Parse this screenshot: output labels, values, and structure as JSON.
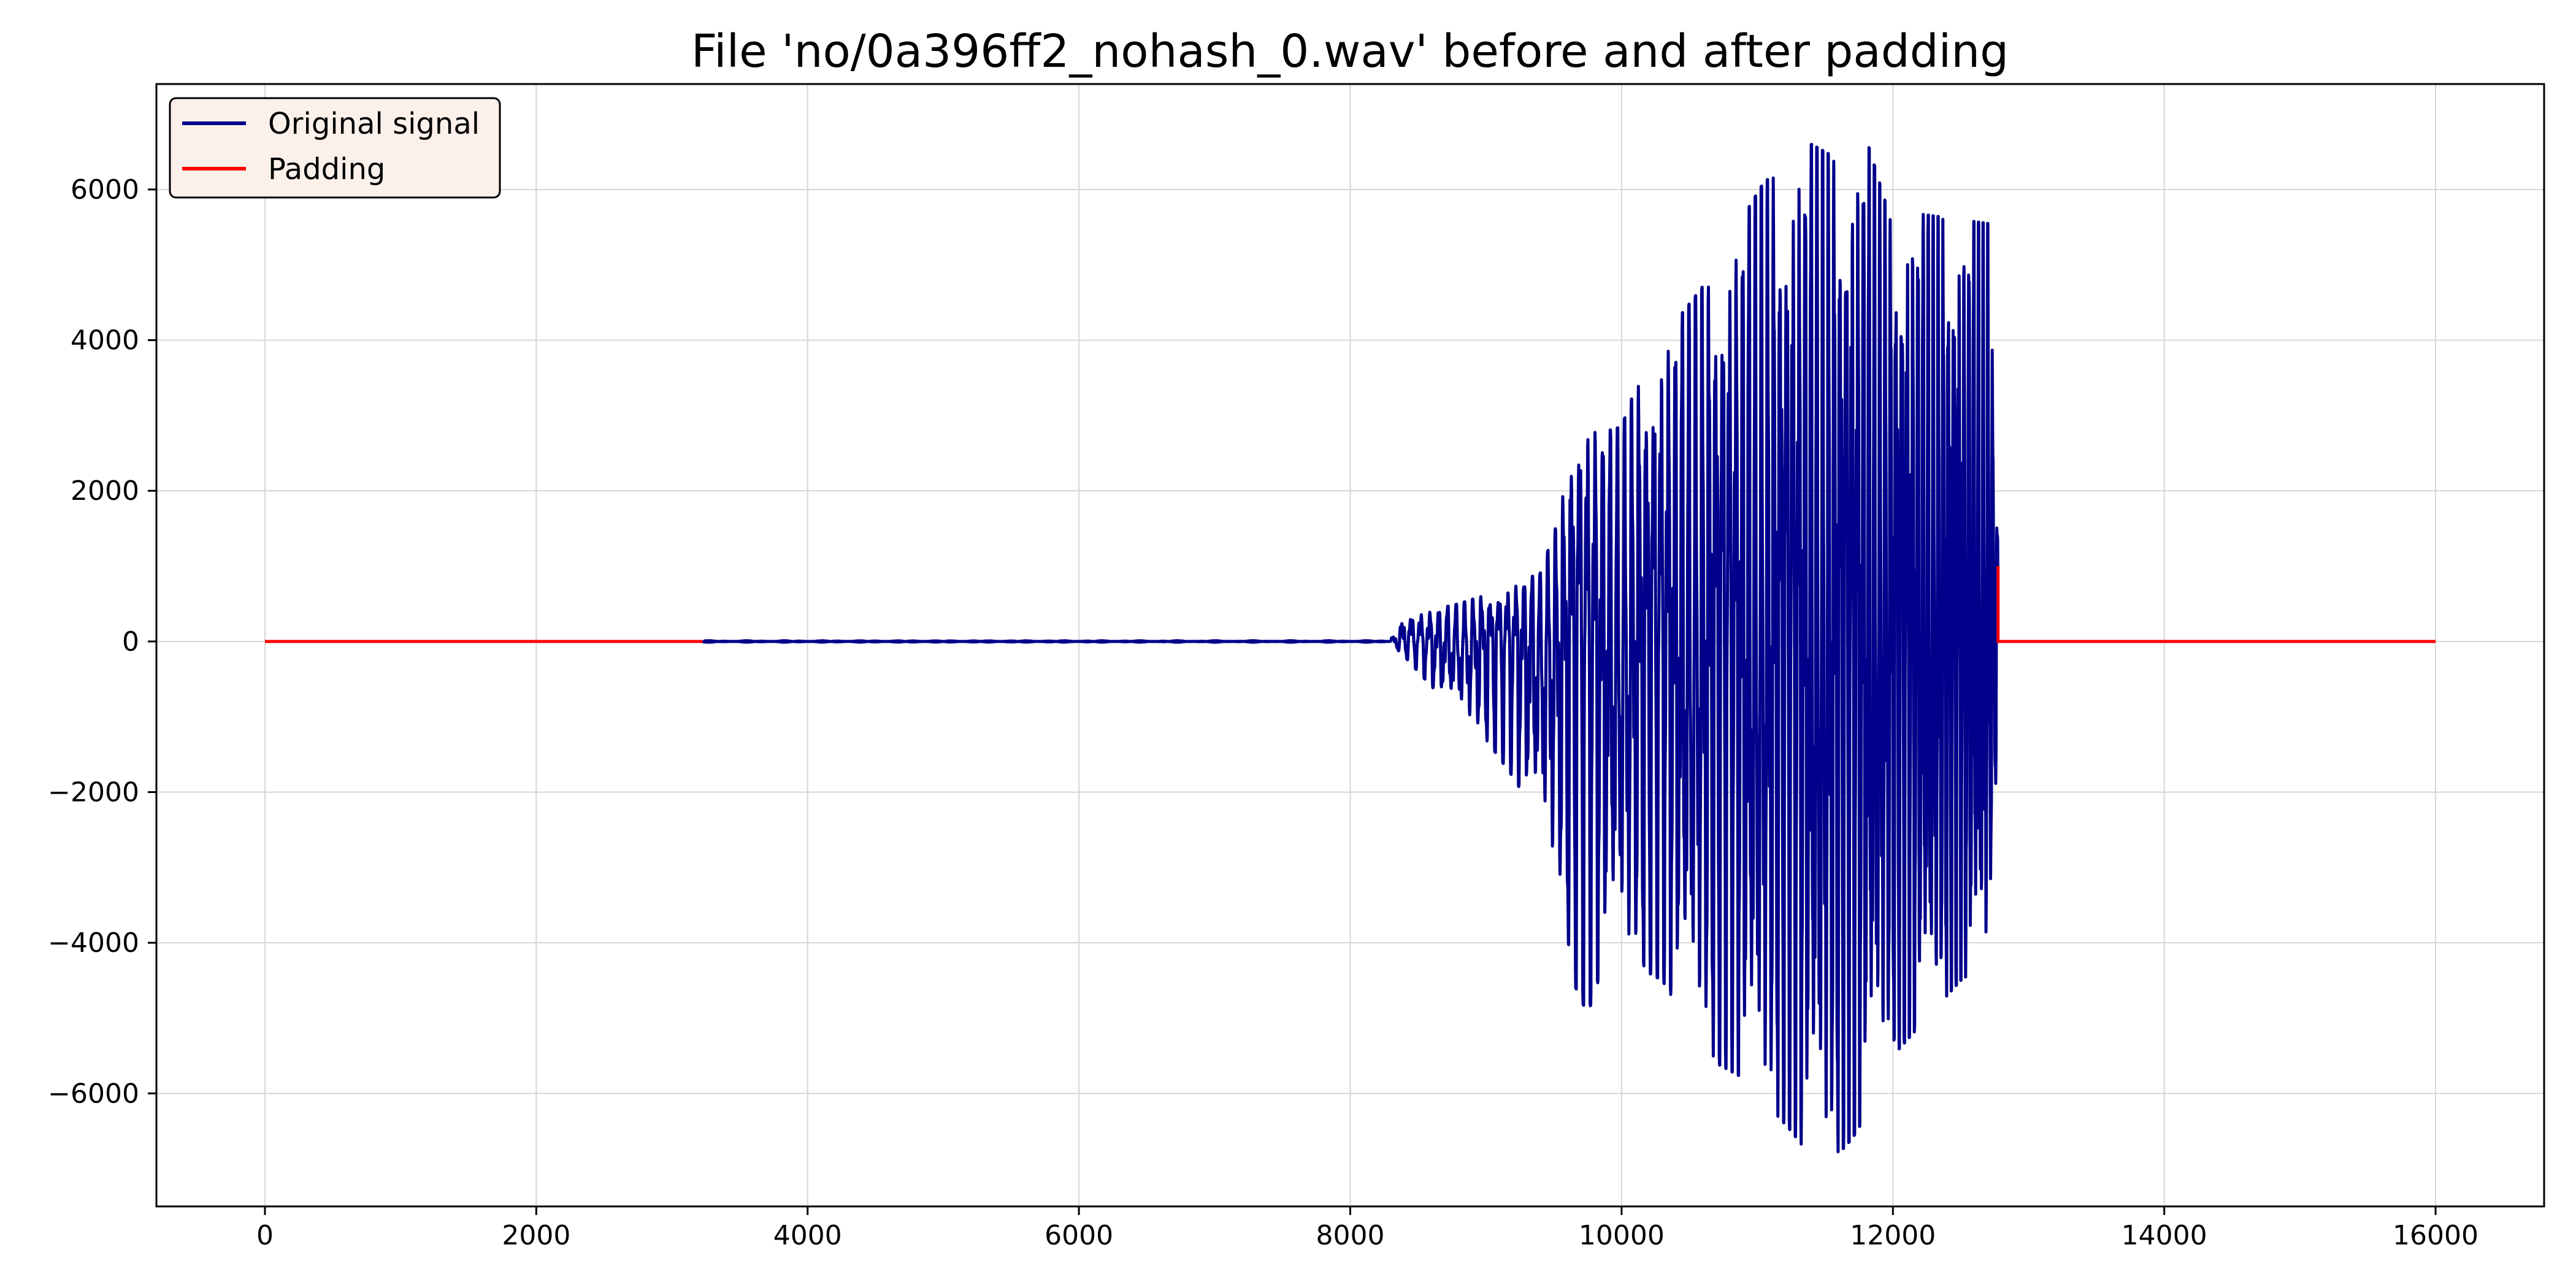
{
  "chart_data": {
    "type": "line",
    "title": "File 'no/0a396ff2_nohash_0.wav' before and after padding",
    "xlabel": "",
    "ylabel": "",
    "xlim": [
      -800,
      16800
    ],
    "ylim": [
      -7500,
      7400
    ],
    "xticks": [
      0,
      2000,
      4000,
      6000,
      8000,
      10000,
      12000,
      14000,
      16000
    ],
    "yticks": [
      -6000,
      -4000,
      -2000,
      0,
      2000,
      4000,
      6000
    ],
    "xtick_labels": [
      "0",
      "2000",
      "4000",
      "6000",
      "8000",
      "10000",
      "12000",
      "14000",
      "16000"
    ],
    "ytick_labels": [
      "−6000",
      "−4000",
      "−2000",
      "0",
      "2000",
      "4000",
      "6000"
    ],
    "grid": true,
    "legend_position": "upper-left",
    "series": [
      {
        "name": "Padding",
        "color": "#ff0000",
        "segments": [
          {
            "x": [
              0,
              3225
            ],
            "y": [
              0,
              0
            ]
          },
          {
            "x": [
              12775,
              12775,
              16000
            ],
            "y": [
              1000,
              0,
              0
            ]
          }
        ]
      },
      {
        "name": "Original signal",
        "color": "#00008b",
        "x_start": 3225,
        "x_end": 12775,
        "quiet_end": 8300,
        "envelope": [
          {
            "x": 8300,
            "max": 30,
            "min": -30
          },
          {
            "x": 8400,
            "max": 380,
            "min": -200
          },
          {
            "x": 8600,
            "max": 420,
            "min": -600
          },
          {
            "x": 8800,
            "max": 500,
            "min": -900
          },
          {
            "x": 9000,
            "max": 620,
            "min": -1300
          },
          {
            "x": 9200,
            "max": 780,
            "min": -1800
          },
          {
            "x": 9400,
            "max": 900,
            "min": -2400
          },
          {
            "x": 9550,
            "max": 1700,
            "min": -3400
          },
          {
            "x": 9650,
            "max": 3150,
            "min": -4550
          },
          {
            "x": 9750,
            "max": 3100,
            "min": -4950
          },
          {
            "x": 9900,
            "max": 2800,
            "min": -4100
          },
          {
            "x": 10000,
            "max": 2850,
            "min": -4150
          },
          {
            "x": 10100,
            "max": 3350,
            "min": -4300
          },
          {
            "x": 10300,
            "max": 4050,
            "min": -4500
          },
          {
            "x": 10400,
            "max": 4250,
            "min": -4800
          },
          {
            "x": 10550,
            "max": 4600,
            "min": -5000
          },
          {
            "x": 10700,
            "max": 4950,
            "min": -5600
          },
          {
            "x": 10900,
            "max": 5650,
            "min": -5800
          },
          {
            "x": 11050,
            "max": 6100,
            "min": -6100
          },
          {
            "x": 11250,
            "max": 6350,
            "min": -6500
          },
          {
            "x": 11400,
            "max": 6600,
            "min": -6850
          },
          {
            "x": 11550,
            "max": 6450,
            "min": -6900
          },
          {
            "x": 11700,
            "max": 6500,
            "min": -6600
          },
          {
            "x": 11800,
            "max": 6700,
            "min": -6300
          },
          {
            "x": 11950,
            "max": 5800,
            "min": -5600
          },
          {
            "x": 12100,
            "max": 5700,
            "min": -5300
          },
          {
            "x": 12300,
            "max": 5650,
            "min": -4900
          },
          {
            "x": 12500,
            "max": 5600,
            "min": -4500
          },
          {
            "x": 12700,
            "max": 5550,
            "min": -4250
          },
          {
            "x": 12775,
            "max": 1700,
            "min": -1200
          }
        ]
      }
    ],
    "legend": [
      {
        "label": "Original signal",
        "color": "#00008b"
      },
      {
        "label": "Padding",
        "color": "#ff0000"
      }
    ]
  }
}
